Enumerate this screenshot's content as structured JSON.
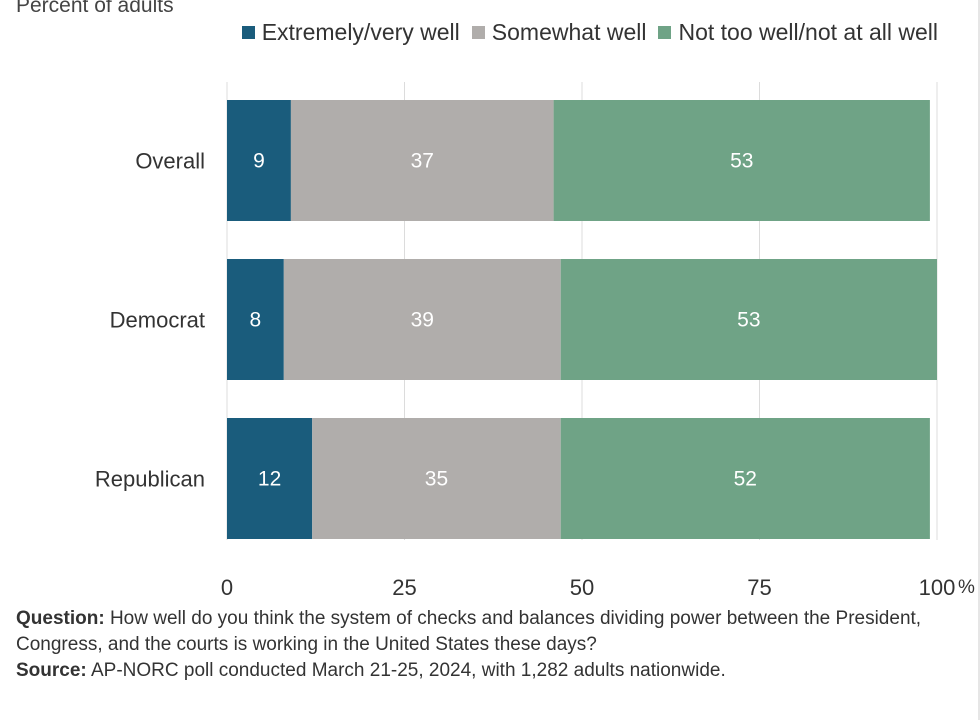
{
  "chart_data": {
    "type": "bar",
    "orientation": "horizontal",
    "stacked": true,
    "subtitle": "Percent of adults",
    "categories": [
      "Overall",
      "Democrat",
      "Republican"
    ],
    "series": [
      {
        "name": "Extremely/very well",
        "values": [
          9,
          8,
          12
        ],
        "color": "#1a5c7c"
      },
      {
        "name": "Somewhat well",
        "values": [
          37,
          39,
          35
        ],
        "color": "#b0adab"
      },
      {
        "name": "Not too well/not at all well",
        "values": [
          53,
          53,
          52
        ],
        "color": "#6fa386"
      }
    ],
    "x_ticks": [
      "0",
      "25",
      "50",
      "75",
      "100"
    ],
    "x_unit": "%",
    "xlim": [
      0,
      100
    ],
    "grid": true,
    "legend_position": "top-right"
  },
  "notes": {
    "question_label": "Question:",
    "question_text": " How well do you think the system of checks and balances dividing power between the President, Congress, and the courts is working in the United States these days?",
    "source_label": "Source:",
    "source_text": " AP-NORC poll conducted March 21-25, 2024, with 1,282 adults nationwide."
  }
}
